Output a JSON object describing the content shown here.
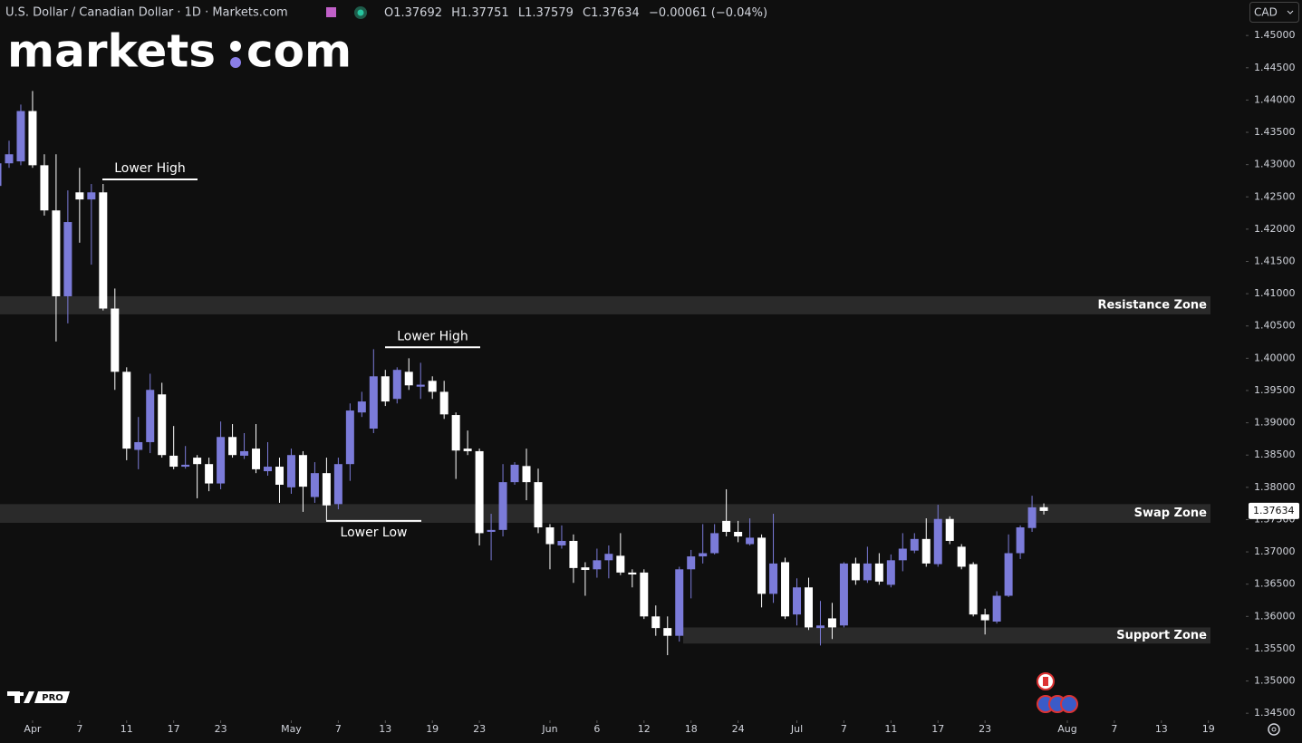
{
  "header": {
    "title": "U.S. Dollar / Canadian Dollar · 1D · Markets.com",
    "ohlc_prefixes": [
      "O",
      "H",
      "L",
      "C"
    ],
    "change": "−0.00061 (−0.04%)",
    "currency": "CAD"
  },
  "logo": {
    "left": "markets",
    "right": "com",
    "badge": "PRO"
  },
  "chart_data": {
    "type": "candlestick",
    "up_color": "#7b7bd9",
    "down_color": "#ffffff",
    "candles": {
      "open": [
        1.4267,
        1.4302,
        1.4305,
        1.4383,
        1.4299,
        1.4229,
        1.4096,
        1.4257,
        1.4246,
        1.4257,
        1.4077,
        1.3979,
        1.3858,
        1.387,
        1.3944,
        1.3849,
        1.3832,
        1.3846,
        1.3836,
        1.3806,
        1.3878,
        1.3849,
        1.386,
        1.3825,
        1.3832,
        1.38,
        1.385,
        1.3785,
        1.3822,
        1.3774,
        1.3836,
        1.3916,
        1.3891,
        1.3972,
        1.3937,
        1.3979,
        1.3956,
        1.3965,
        1.3948,
        1.3912,
        1.386,
        1.3856,
        1.3731,
        1.3734,
        1.3808,
        1.3833,
        1.3808,
        1.3738,
        1.371,
        1.3717,
        1.3676,
        1.3673,
        1.3687,
        1.3694,
        1.3668,
        1.3668,
        1.36,
        1.3582,
        1.357,
        1.3673,
        1.3693,
        1.3698,
        1.3748,
        1.3731,
        1.3712,
        1.3722,
        1.3635,
        1.3684,
        1.3603,
        1.3645,
        1.3582,
        1.3597,
        1.3586,
        1.3682,
        1.3656,
        1.3682,
        1.3649,
        1.3687,
        1.3702,
        1.372,
        1.3681,
        1.3751,
        1.3708,
        1.3681,
        1.3603,
        1.3592,
        1.3632,
        1.3698,
        1.3737,
        1.37692
      ],
      "high": [
        1.4331,
        1.4337,
        1.4393,
        1.4414,
        1.4316,
        1.4316,
        1.426,
        1.4295,
        1.427,
        1.427,
        1.4108,
        1.3986,
        1.3909,
        1.3976,
        1.3962,
        1.3895,
        1.3864,
        1.385,
        1.3846,
        1.3902,
        1.3898,
        1.3884,
        1.3898,
        1.387,
        1.3846,
        1.386,
        1.3856,
        1.3839,
        1.3846,
        1.3846,
        1.393,
        1.3948,
        1.4014,
        1.3982,
        1.3986,
        1.4,
        1.3993,
        1.3972,
        1.3965,
        1.3916,
        1.3888,
        1.386,
        1.3759,
        1.3836,
        1.3839,
        1.386,
        1.3829,
        1.3743,
        1.3741,
        1.3727,
        1.3684,
        1.3705,
        1.371,
        1.3729,
        1.3673,
        1.3673,
        1.3617,
        1.36,
        1.3677,
        1.3703,
        1.3743,
        1.3743,
        1.3797,
        1.3748,
        1.3752,
        1.3727,
        1.3759,
        1.3691,
        1.3659,
        1.366,
        1.3624,
        1.3621,
        1.3684,
        1.3691,
        1.3708,
        1.3698,
        1.3696,
        1.3729,
        1.3729,
        1.3752,
        1.3773,
        1.3755,
        1.3712,
        1.3684,
        1.3612,
        1.3639,
        1.3727,
        1.3741,
        1.3787,
        1.37751
      ],
      "low": [
        1.4263,
        1.4295,
        1.4299,
        1.4295,
        1.4221,
        1.4026,
        1.4054,
        1.4179,
        1.4145,
        1.4074,
        1.3951,
        1.3842,
        1.3828,
        1.3853,
        1.3846,
        1.3828,
        1.3829,
        1.3783,
        1.3794,
        1.3797,
        1.3846,
        1.3844,
        1.3822,
        1.3818,
        1.3776,
        1.379,
        1.3762,
        1.3776,
        1.3748,
        1.3766,
        1.381,
        1.3909,
        1.3884,
        1.3926,
        1.393,
        1.3951,
        1.3937,
        1.3937,
        1.3906,
        1.3813,
        1.385,
        1.371,
        1.3687,
        1.3724,
        1.3804,
        1.378,
        1.3729,
        1.3673,
        1.3705,
        1.3652,
        1.3632,
        1.366,
        1.3659,
        1.3664,
        1.3645,
        1.3596,
        1.357,
        1.354,
        1.3561,
        1.3628,
        1.3682,
        1.3696,
        1.3724,
        1.3715,
        1.371,
        1.3614,
        1.3621,
        1.3596,
        1.3586,
        1.3579,
        1.3555,
        1.3565,
        1.3583,
        1.3649,
        1.3652,
        1.3649,
        1.3645,
        1.367,
        1.3698,
        1.3677,
        1.3677,
        1.3712,
        1.3673,
        1.36,
        1.3572,
        1.3589,
        1.363,
        1.3689,
        1.3731,
        1.37579
      ],
      "close": [
        1.4302,
        1.4316,
        1.4383,
        1.4299,
        1.4229,
        1.4096,
        1.4211,
        1.4246,
        1.4257,
        1.4077,
        1.3979,
        1.386,
        1.387,
        1.3951,
        1.385,
        1.3832,
        1.3835,
        1.3836,
        1.3806,
        1.3878,
        1.385,
        1.3856,
        1.3828,
        1.3832,
        1.3804,
        1.385,
        1.3801,
        1.3822,
        1.3772,
        1.3836,
        1.3919,
        1.3933,
        1.3972,
        1.3933,
        1.3982,
        1.3958,
        1.3959,
        1.3948,
        1.3913,
        1.3857,
        1.3856,
        1.3729,
        1.3734,
        1.3808,
        1.3835,
        1.3808,
        1.3738,
        1.3712,
        1.3717,
        1.3675,
        1.3672,
        1.3687,
        1.3697,
        1.3668,
        1.3665,
        1.36,
        1.3582,
        1.357,
        1.3673,
        1.3693,
        1.3698,
        1.3729,
        1.3731,
        1.3724,
        1.3722,
        1.3635,
        1.3682,
        1.36,
        1.3645,
        1.3583,
        1.3586,
        1.3583,
        1.3682,
        1.3656,
        1.3682,
        1.3654,
        1.3687,
        1.3705,
        1.372,
        1.3682,
        1.3751,
        1.3717,
        1.3677,
        1.3603,
        1.3594,
        1.3632,
        1.3698,
        1.3738,
        1.3769,
        1.37634
      ]
    },
    "xlim": [
      0.23,
      106.18
    ],
    "xticks": [
      {
        "value": 3,
        "label": "Apr"
      },
      {
        "value": 7,
        "label": "7"
      },
      {
        "value": 11,
        "label": "11"
      },
      {
        "value": 15,
        "label": "17"
      },
      {
        "value": 19,
        "label": "23"
      },
      {
        "value": 25,
        "label": "May"
      },
      {
        "value": 29,
        "label": "7"
      },
      {
        "value": 33,
        "label": "13"
      },
      {
        "value": 37,
        "label": "19"
      },
      {
        "value": 41,
        "label": "23"
      },
      {
        "value": 47,
        "label": "Jun"
      },
      {
        "value": 51,
        "label": "6"
      },
      {
        "value": 55,
        "label": "12"
      },
      {
        "value": 59,
        "label": "18"
      },
      {
        "value": 63,
        "label": "24"
      },
      {
        "value": 68,
        "label": "Jul"
      },
      {
        "value": 72,
        "label": "7"
      },
      {
        "value": 76,
        "label": "11"
      },
      {
        "value": 80,
        "label": "17"
      },
      {
        "value": 84,
        "label": "23"
      },
      {
        "value": 91,
        "label": "Aug"
      },
      {
        "value": 95,
        "label": "7"
      },
      {
        "value": 99,
        "label": "13"
      },
      {
        "value": 103,
        "label": "19"
      }
    ],
    "ylim": [
      1.3439,
      1.4555
    ],
    "yticks": [
      {
        "value": 1.45,
        "label": "1.45000"
      },
      {
        "value": 1.445,
        "label": "1.44500"
      },
      {
        "value": 1.44,
        "label": "1.44000"
      },
      {
        "value": 1.435,
        "label": "1.43500"
      },
      {
        "value": 1.43,
        "label": "1.43000"
      },
      {
        "value": 1.425,
        "label": "1.42500"
      },
      {
        "value": 1.42,
        "label": "1.42000"
      },
      {
        "value": 1.415,
        "label": "1.41500"
      },
      {
        "value": 1.41,
        "label": "1.41000"
      },
      {
        "value": 1.405,
        "label": "1.40500"
      },
      {
        "value": 1.4,
        "label": "1.40000"
      },
      {
        "value": 1.395,
        "label": "1.39500"
      },
      {
        "value": 1.39,
        "label": "1.39000"
      },
      {
        "value": 1.385,
        "label": "1.38500"
      },
      {
        "value": 1.38,
        "label": "1.38000"
      },
      {
        "value": 1.375,
        "label": "1.37500"
      },
      {
        "value": 1.37,
        "label": "1.37000"
      },
      {
        "value": 1.365,
        "label": "1.36500"
      },
      {
        "value": 1.36,
        "label": "1.36000"
      },
      {
        "value": 1.355,
        "label": "1.35500"
      },
      {
        "value": 1.35,
        "label": "1.35000"
      },
      {
        "value": 1.345,
        "label": "1.34500"
      }
    ],
    "grid": false,
    "zones": [
      {
        "label": "Resistance Zone",
        "top": 1.4096,
        "bottom": 1.4068
      },
      {
        "label": "Swap Zone",
        "top": 1.3774,
        "bottom": 1.3745
      },
      {
        "label": "Support Zone",
        "top": 1.3583,
        "bottom": 1.3558
      }
    ],
    "annotations": [
      {
        "text": "Lower High",
        "price": 1.4277
      },
      {
        "text": "Lower High",
        "price": 1.4017
      },
      {
        "text": "Lower Low",
        "price": 1.3748
      }
    ]
  }
}
